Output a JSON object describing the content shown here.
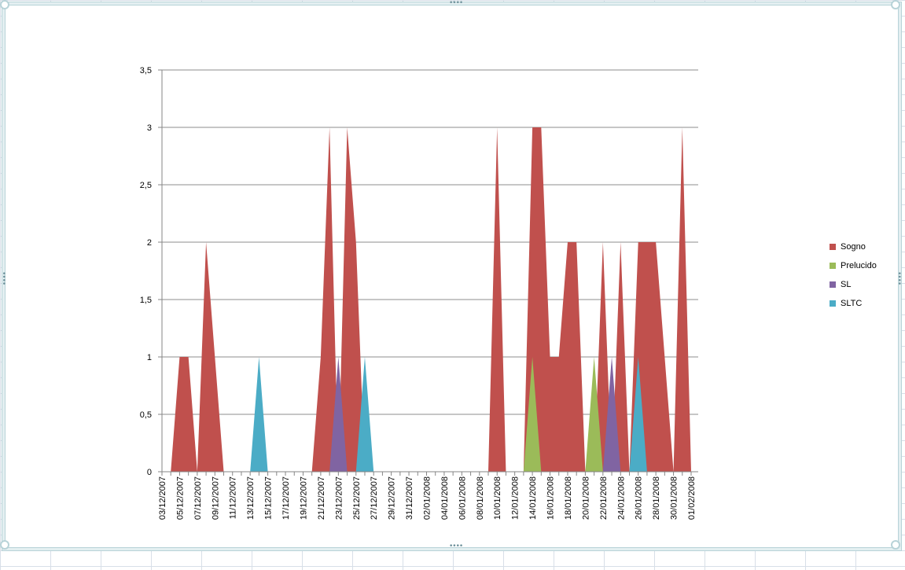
{
  "chart_data": {
    "type": "area",
    "title": "",
    "xlabel": "",
    "ylabel": "",
    "ylim": [
      0,
      3.5
    ],
    "yticks": [
      "0",
      "0,5",
      "1",
      "1,5",
      "2",
      "2,5",
      "3",
      "3,5"
    ],
    "grid": true,
    "legend_position": "right",
    "x": [
      "03/12/2007",
      "04/12/2007",
      "05/12/2007",
      "06/12/2007",
      "07/12/2007",
      "08/12/2007",
      "09/12/2007",
      "10/12/2007",
      "11/12/2007",
      "12/12/2007",
      "13/12/2007",
      "14/12/2007",
      "15/12/2007",
      "16/12/2007",
      "17/12/2007",
      "18/12/2007",
      "19/12/2007",
      "20/12/2007",
      "21/12/2007",
      "22/12/2007",
      "23/12/2007",
      "24/12/2007",
      "25/12/2007",
      "26/12/2007",
      "27/12/2007",
      "28/12/2007",
      "29/12/2007",
      "30/12/2007",
      "31/12/2007",
      "01/01/2008",
      "02/01/2008",
      "03/01/2008",
      "04/01/2008",
      "05/01/2008",
      "06/01/2008",
      "07/01/2008",
      "08/01/2008",
      "09/01/2008",
      "10/01/2008",
      "11/01/2008",
      "12/01/2008",
      "13/01/2008",
      "14/01/2008",
      "15/01/2008",
      "16/01/2008",
      "17/01/2008",
      "18/01/2008",
      "19/01/2008",
      "20/01/2008",
      "21/01/2008",
      "22/01/2008",
      "23/01/2008",
      "24/01/2008",
      "25/01/2008",
      "26/01/2008",
      "27/01/2008",
      "28/01/2008",
      "29/01/2008",
      "30/01/2008",
      "31/01/2008",
      "01/02/2008"
    ],
    "x_tick_labels": [
      "03/12/2007",
      "05/12/2007",
      "07/12/2007",
      "09/12/2007",
      "11/12/2007",
      "13/12/2007",
      "15/12/2007",
      "17/12/2007",
      "19/12/2007",
      "21/12/2007",
      "23/12/2007",
      "25/12/2007",
      "27/12/2007",
      "29/12/2007",
      "31/12/2007",
      "02/01/2008",
      "04/01/2008",
      "06/01/2008",
      "08/01/2008",
      "10/01/2008",
      "12/01/2008",
      "14/01/2008",
      "16/01/2008",
      "18/01/2008",
      "20/01/2008",
      "22/01/2008",
      "24/01/2008",
      "26/01/2008",
      "28/01/2008",
      "30/01/2008",
      "01/02/2008"
    ],
    "series": [
      {
        "name": "Sogno",
        "color": "#c0504d",
        "values": [
          0,
          0,
          1,
          1,
          0,
          2,
          1,
          0,
          0,
          0,
          0,
          0,
          0,
          0,
          0,
          0,
          0,
          0,
          1,
          3,
          0,
          3,
          2,
          0,
          0,
          0,
          0,
          0,
          0,
          0,
          0,
          0,
          0,
          0,
          0,
          0,
          0,
          0,
          3,
          0,
          0,
          0,
          3,
          3,
          1,
          1,
          2,
          2,
          0,
          0,
          2,
          0,
          2,
          0,
          2,
          2,
          2,
          1,
          0,
          3,
          0
        ]
      },
      {
        "name": "Prelucido",
        "color": "#9bbb59",
        "values": [
          0,
          0,
          0,
          0,
          0,
          0,
          0,
          0,
          0,
          0,
          0,
          0,
          0,
          0,
          0,
          0,
          0,
          0,
          0,
          0,
          0,
          0,
          0,
          0,
          0,
          0,
          0,
          0,
          0,
          0,
          0,
          0,
          0,
          0,
          0,
          0,
          0,
          0,
          0,
          0,
          0,
          0,
          1,
          0,
          0,
          0,
          0,
          0,
          0,
          1,
          0,
          0,
          0,
          0,
          0,
          0,
          0,
          0,
          0,
          0,
          0
        ]
      },
      {
        "name": "SL",
        "color": "#8064a2",
        "values": [
          0,
          0,
          0,
          0,
          0,
          0,
          0,
          0,
          0,
          0,
          0,
          0,
          0,
          0,
          0,
          0,
          0,
          0,
          0,
          0,
          1,
          0,
          0,
          0,
          0,
          0,
          0,
          0,
          0,
          0,
          0,
          0,
          0,
          0,
          0,
          0,
          0,
          0,
          0,
          0,
          0,
          0,
          0,
          0,
          0,
          0,
          0,
          0,
          0,
          0,
          0,
          1,
          0,
          0,
          0,
          0,
          0,
          0,
          0,
          0,
          0
        ]
      },
      {
        "name": "SLTC",
        "color": "#4bacc6",
        "values": [
          0,
          0,
          0,
          0,
          0,
          0,
          0,
          0,
          0,
          0,
          0,
          1,
          0,
          0,
          0,
          0,
          0,
          0,
          0,
          0,
          0,
          0,
          0,
          1,
          0,
          0,
          0,
          0,
          0,
          0,
          0,
          0,
          0,
          0,
          0,
          0,
          0,
          0,
          0,
          0,
          0,
          0,
          0,
          0,
          0,
          0,
          0,
          0,
          0,
          0,
          0,
          0,
          0,
          0,
          1,
          0,
          0,
          0,
          0,
          0,
          0
        ]
      }
    ]
  }
}
